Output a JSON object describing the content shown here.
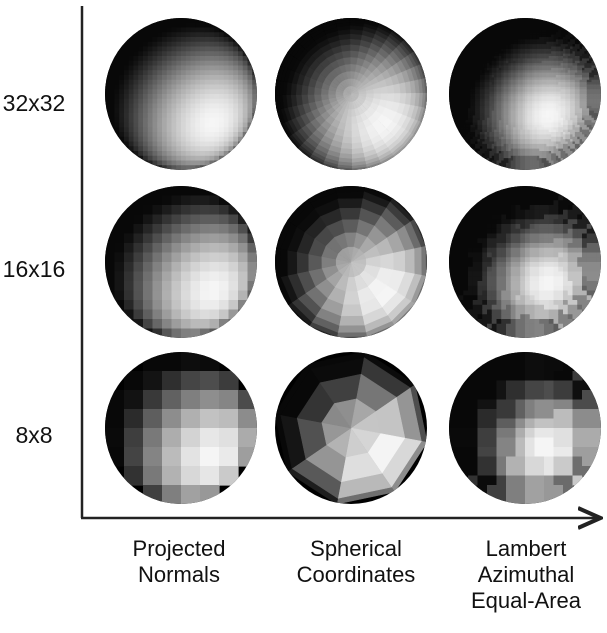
{
  "rows": [
    {
      "label": "32x32",
      "resolution": 32
    },
    {
      "label": "16x16",
      "resolution": 16
    },
    {
      "label": "8x8",
      "resolution": 8
    }
  ],
  "columns": [
    {
      "lines": [
        "Projected",
        "Normals"
      ],
      "method": "projected-normals"
    },
    {
      "lines": [
        "Spherical",
        "Coordinates"
      ],
      "method": "spherical-coordinates"
    },
    {
      "lines": [
        "Lambert",
        "Azimuthal",
        "Equal-Area"
      ],
      "method": "lambert-azimuthal-equal-area"
    }
  ],
  "colors": {
    "axis": "#222222",
    "background": "#ffffff",
    "sphere_base": "#000000"
  }
}
